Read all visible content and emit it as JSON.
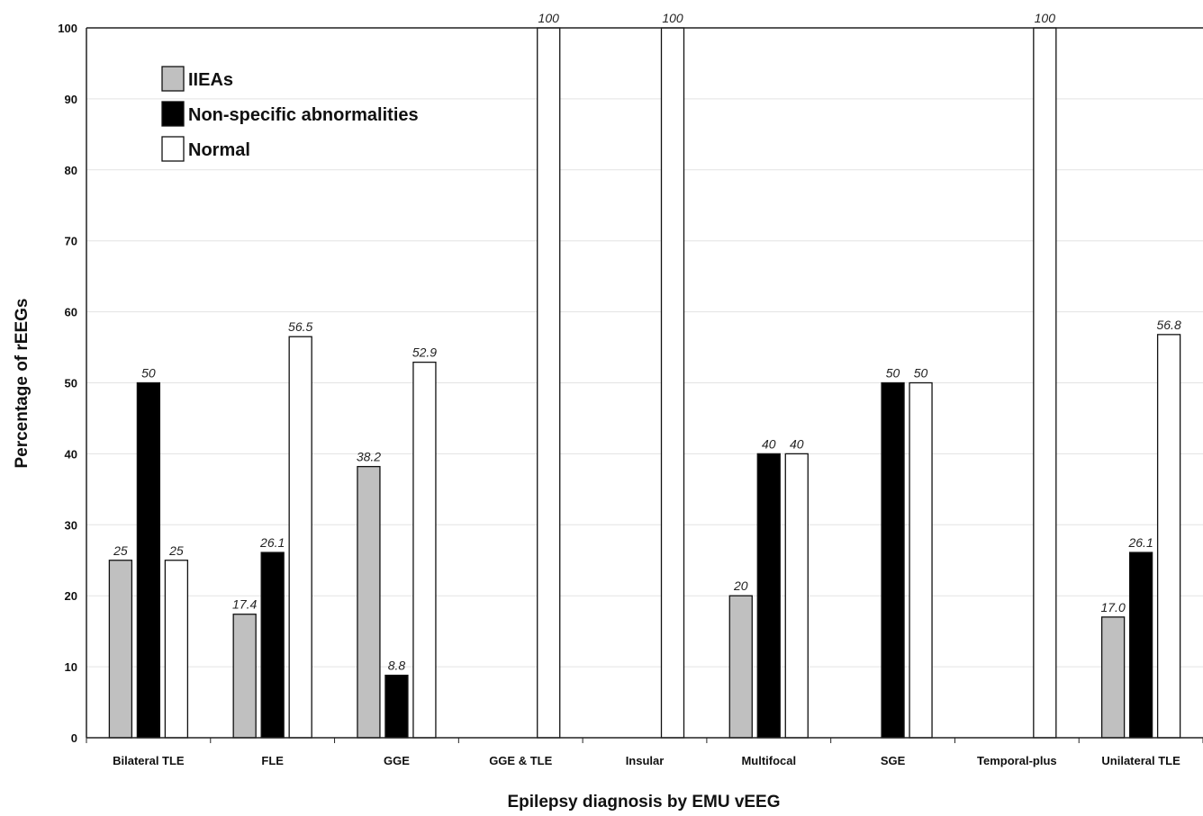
{
  "chart_data": {
    "type": "bar",
    "title": "",
    "xlabel": "Epilepsy diagnosis by EMU vEEG",
    "ylabel": "Percentage of rEEGs",
    "ylim": [
      0,
      100
    ],
    "yticks": [
      0,
      10,
      20,
      30,
      40,
      50,
      60,
      70,
      80,
      90,
      100
    ],
    "grid": true,
    "legend_position": "top-left",
    "categories": [
      "Bilateral TLE",
      "FLE",
      "GGE",
      "GGE & TLE",
      "Insular",
      "Multifocal",
      "SGE",
      "Temporal-plus",
      "Unilateral TLE"
    ],
    "series": [
      {
        "name": "IIEAs",
        "color": "#c0c0c0",
        "values": [
          25,
          17.4,
          38.2,
          null,
          null,
          20,
          null,
          null,
          17.0
        ],
        "labels": [
          "25",
          "17.4",
          "38.2",
          null,
          null,
          "20",
          null,
          null,
          "17.0"
        ]
      },
      {
        "name": "Non-specific abnormalities",
        "color": "#000000",
        "values": [
          50,
          26.1,
          8.8,
          null,
          null,
          40,
          50,
          null,
          26.1
        ],
        "labels": [
          "50",
          "26.1",
          "8.8",
          null,
          null,
          "40",
          "50",
          null,
          "26.1"
        ]
      },
      {
        "name": "Normal",
        "color": "#ffffff",
        "values": [
          25,
          56.5,
          52.9,
          100,
          100,
          40,
          50,
          100,
          56.8
        ],
        "labels": [
          "25",
          "56.5",
          "52.9",
          "100",
          "100",
          "40",
          "50",
          "100",
          "56.8"
        ]
      }
    ]
  }
}
